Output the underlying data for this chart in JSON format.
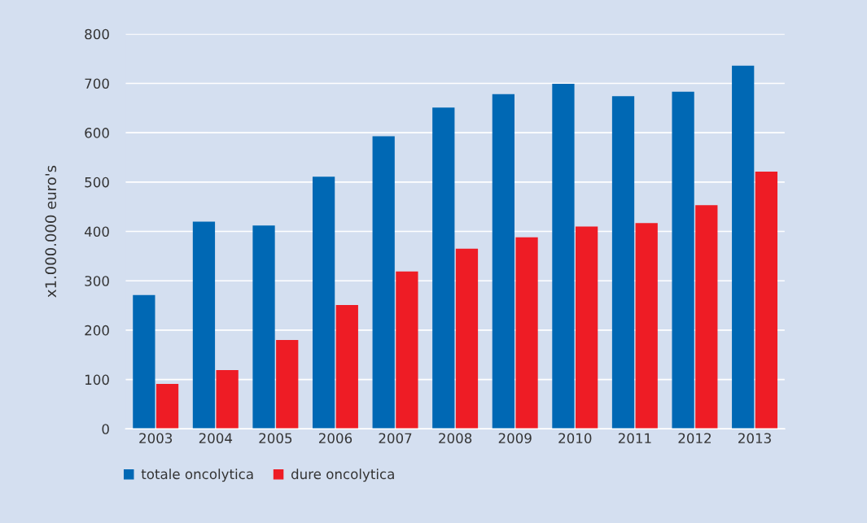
{
  "chart_data": {
    "type": "bar",
    "ylabel": "x1.000.000 euro's",
    "categories": [
      "2003",
      "2004",
      "2005",
      "2006",
      "2007",
      "2008",
      "2009",
      "2010",
      "2011",
      "2012",
      "2013"
    ],
    "series": [
      {
        "name": "totale oncolytica",
        "color": "#0068b4",
        "values": [
          271,
          420,
          412,
          511,
          593,
          651,
          678,
          699,
          674,
          683,
          736
        ]
      },
      {
        "name": "dure oncolytica",
        "color": "#ee1c25",
        "values": [
          91,
          119,
          180,
          251,
          319,
          365,
          388,
          410,
          417,
          453,
          521
        ]
      }
    ],
    "ylim": [
      0,
      800
    ],
    "yticks": [
      0,
      100,
      200,
      300,
      400,
      500,
      600,
      700,
      800
    ],
    "grid": "y",
    "legend": "bottom left"
  }
}
